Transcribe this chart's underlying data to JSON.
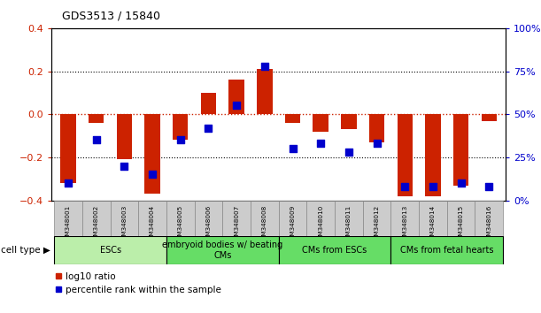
{
  "title": "GDS3513 / 15840",
  "samples": [
    "GSM348001",
    "GSM348002",
    "GSM348003",
    "GSM348004",
    "GSM348005",
    "GSM348006",
    "GSM348007",
    "GSM348008",
    "GSM348009",
    "GSM348010",
    "GSM348011",
    "GSM348012",
    "GSM348013",
    "GSM348014",
    "GSM348015",
    "GSM348016"
  ],
  "log10_ratio": [
    -0.32,
    -0.04,
    -0.21,
    -0.37,
    -0.12,
    0.1,
    0.16,
    0.21,
    -0.04,
    -0.08,
    -0.07,
    -0.13,
    -0.38,
    -0.38,
    -0.33,
    -0.03
  ],
  "percentile_rank": [
    10,
    35,
    20,
    15,
    35,
    42,
    55,
    78,
    30,
    33,
    28,
    33,
    8,
    8,
    10,
    8
  ],
  "groups": [
    {
      "label": "ESCs",
      "start": 0,
      "end": 3,
      "color": "#BBEEAA"
    },
    {
      "label": "embryoid bodies w/ beating\nCMs",
      "start": 4,
      "end": 7,
      "color": "#66DD66"
    },
    {
      "label": "CMs from ESCs",
      "start": 8,
      "end": 11,
      "color": "#66DD66"
    },
    {
      "label": "CMs from fetal hearts",
      "start": 12,
      "end": 15,
      "color": "#66DD66"
    }
  ],
  "left_ylim": [
    -0.4,
    0.4
  ],
  "right_ylim": [
    0,
    100
  ],
  "left_yticks": [
    -0.4,
    -0.2,
    0,
    0.2,
    0.4
  ],
  "right_yticks": [
    0,
    25,
    50,
    75,
    100
  ],
  "bar_color": "#CC2200",
  "dot_color": "#0000CC",
  "bar_width": 0.55,
  "dot_size": 30,
  "zero_line_color": "#CC2200",
  "bg_color": "#FFFFFF",
  "plot_bg": "#FFFFFF",
  "tick_color_left": "#CC2200",
  "tick_color_right": "#0000CC",
  "legend_red_label": "log10 ratio",
  "legend_blue_label": "percentile rank within the sample",
  "sample_box_color": "#CCCCCC",
  "sample_box_edge": "#888888"
}
